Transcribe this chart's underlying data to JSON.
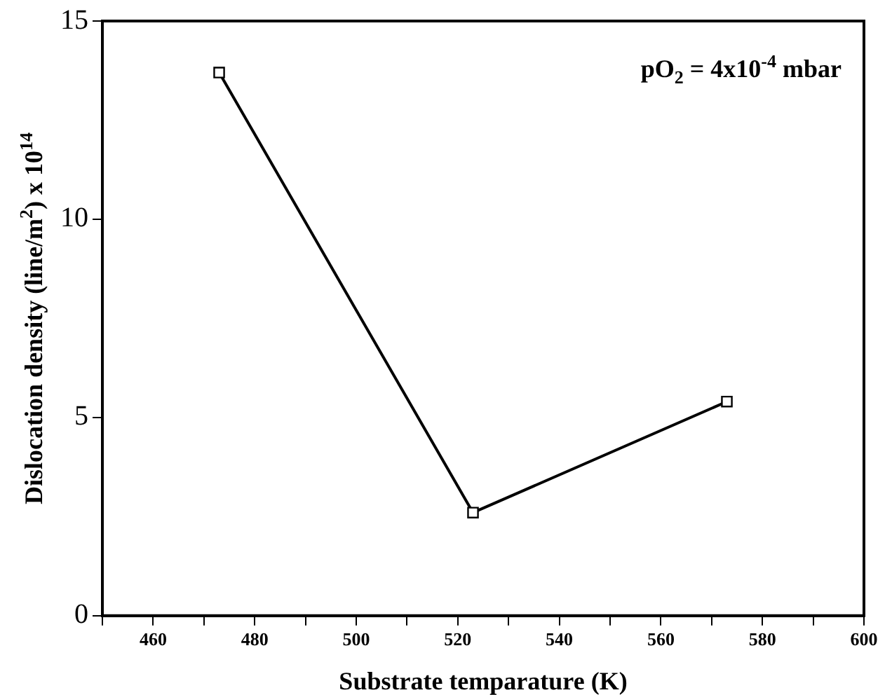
{
  "chart_data": {
    "type": "line",
    "xlabel": "Substrate temparature (K)",
    "ylabel": "Dislocation density (line/m$^{2}$) x 10$^{14}$",
    "annotations": [
      "pO$_{2}$ = 4x10$^{-4}$ mbar"
    ],
    "x": [
      473,
      523,
      573
    ],
    "series": [
      {
        "color": "#000000",
        "values": [
          13.7,
          2.6,
          5.4
        ]
      }
    ],
    "xlim": [
      450,
      600
    ],
    "xticks": [
      {
        "value": 450,
        "label": null
      },
      460,
      {
        "value": 470,
        "label": null
      },
      480,
      {
        "value": 490,
        "label": null
      },
      500,
      {
        "value": 510,
        "label": null
      },
      520,
      {
        "value": 530,
        "label": null
      },
      540,
      {
        "value": 550,
        "label": null
      },
      560,
      {
        "value": 570,
        "label": null
      },
      580,
      {
        "value": 590,
        "label": null
      },
      600
    ],
    "ylim": [
      0,
      15
    ],
    "yticks": [
      0,
      5,
      10,
      15
    ],
    "grid": false,
    "legend": false,
    "marker": "square",
    "line_style": "solid"
  }
}
